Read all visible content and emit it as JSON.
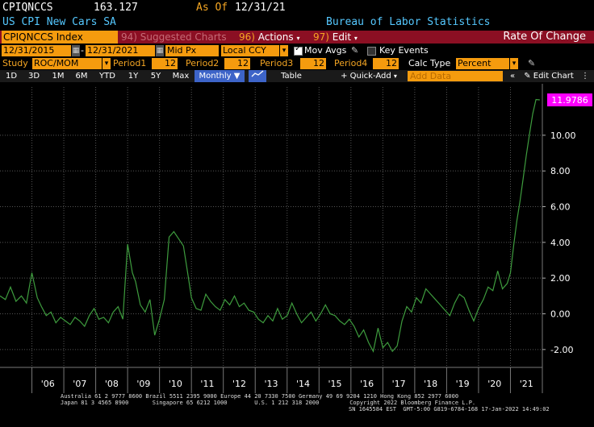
{
  "header": {
    "ticker": "CPIQNCCS",
    "price": "163.127",
    "as_of_label": "As Of",
    "as_of_date": "12/31/21",
    "description": "US CPI New Cars SA",
    "source": "Bureau of Labor Statistics"
  },
  "toolbar": {
    "security": "CPIQNCCS Index",
    "suggested_num": "94)",
    "suggested_label": "Suggested Charts",
    "actions_num": "96)",
    "actions_label": "Actions",
    "edit_num": "97)",
    "edit_label": "Edit",
    "right_title": "Rate Of Change"
  },
  "settings": {
    "start_date": "12/31/2015",
    "end_date": "12/31/2021",
    "price_field": "Mid Px",
    "currency": "Local CCY",
    "mov_avgs_label": "Mov Avgs",
    "key_events_label": "Key Events",
    "study_label": "Study",
    "study_value": "ROC/MOM",
    "period1_label": "Period1",
    "period1_value": "12",
    "period2_label": "Period2",
    "period2_value": "12",
    "period3_label": "Period3",
    "period3_value": "12",
    "period4_label": "Period4",
    "period4_value": "12",
    "calc_type_label": "Calc Type",
    "calc_type_value": "Percent"
  },
  "range_bar": {
    "ranges": [
      "1D",
      "3D",
      "1M",
      "6M",
      "YTD",
      "1Y",
      "5Y",
      "Max"
    ],
    "frequency": "Monthly",
    "table_label": "Table",
    "quick_add_label": "Quick-Add",
    "add_data_placeholder": "Add Data",
    "edit_chart_label": "Edit Chart"
  },
  "chart_data": {
    "type": "line",
    "title": "",
    "xlabel": "",
    "ylabel": "",
    "ylim": [
      -3.0,
      12.7
    ],
    "y_ticks": [
      -2.0,
      0.0,
      2.0,
      4.0,
      6.0,
      8.0,
      10.0
    ],
    "y_tick_labels": [
      "-2.00",
      "0.00",
      "2.00",
      "4.00",
      "6.00",
      "8.00",
      "10.00"
    ],
    "x_tick_labels": [
      "'06",
      "'07",
      "'08",
      "'09",
      "'10",
      "'11",
      "'12",
      "'13",
      "'14",
      "'15",
      "'16",
      "'17",
      "'18",
      "'19",
      "'20",
      "'21"
    ],
    "x_range": [
      2005.0,
      2022.0
    ],
    "last_value_label": "11.9786",
    "line_color": "#3e9c3e",
    "grid": true,
    "series": [
      {
        "x": [
          2005.0,
          2005.17,
          2005.33,
          2005.5,
          2005.67,
          2005.83,
          2006.0,
          2006.17,
          2006.3,
          2006.45,
          2006.6,
          2006.75,
          2006.9,
          2007.05,
          2007.2,
          2007.35,
          2007.5,
          2007.65,
          2007.8,
          2007.95,
          2008.1,
          2008.25,
          2008.4,
          2008.55,
          2008.7,
          2008.85,
          2009.0,
          2009.15,
          2009.25,
          2009.4,
          2009.55,
          2009.7,
          2009.85,
          2010.0,
          2010.15,
          2010.3,
          2010.45,
          2010.6,
          2010.75,
          2010.9,
          2011.0,
          2011.15,
          2011.3,
          2011.45,
          2011.6,
          2011.75,
          2011.9,
          2012.05,
          2012.2,
          2012.35,
          2012.5,
          2012.65,
          2012.8,
          2012.95,
          2013.1,
          2013.25,
          2013.4,
          2013.55,
          2013.7,
          2013.85,
          2014.0,
          2014.15,
          2014.3,
          2014.45,
          2014.6,
          2014.75,
          2014.9,
          2015.05,
          2015.2,
          2015.35,
          2015.5,
          2015.65,
          2015.8,
          2015.95,
          2016.1,
          2016.25,
          2016.4,
          2016.55,
          2016.7,
          2016.85,
          2017.0,
          2017.15,
          2017.3,
          2017.45,
          2017.6,
          2017.75,
          2017.9,
          2018.05,
          2018.2,
          2018.35,
          2018.5,
          2018.65,
          2018.8,
          2018.95,
          2019.1,
          2019.25,
          2019.4,
          2019.55,
          2019.7,
          2019.85,
          2020.0,
          2020.15,
          2020.3,
          2020.45,
          2020.6,
          2020.75,
          2020.9,
          2021.0,
          2021.1,
          2021.2,
          2021.3,
          2021.4,
          2021.5,
          2021.6,
          2021.7,
          2021.8,
          2021.92
        ],
        "y": [
          1.0,
          0.8,
          1.5,
          0.7,
          1.0,
          0.6,
          2.3,
          0.9,
          0.4,
          -0.1,
          0.1,
          -0.5,
          -0.2,
          -0.4,
          -0.6,
          -0.2,
          -0.4,
          -0.7,
          -0.1,
          0.3,
          -0.3,
          -0.2,
          -0.5,
          0.1,
          0.4,
          -0.3,
          3.9,
          2.3,
          1.8,
          0.5,
          0.1,
          0.8,
          -1.2,
          -0.3,
          0.8,
          4.3,
          4.6,
          4.2,
          3.8,
          2.1,
          0.9,
          0.3,
          0.2,
          1.1,
          0.7,
          0.4,
          0.2,
          0.8,
          0.5,
          1.0,
          0.4,
          0.6,
          0.2,
          0.1,
          -0.3,
          -0.5,
          -0.1,
          -0.4,
          0.3,
          -0.3,
          -0.1,
          0.6,
          0.0,
          -0.5,
          -0.2,
          0.1,
          -0.4,
          0.0,
          0.5,
          0.0,
          -0.1,
          -0.4,
          -0.6,
          -0.3,
          -0.7,
          -1.3,
          -0.9,
          -1.6,
          -2.1,
          -0.8,
          -1.9,
          -1.6,
          -2.1,
          -1.8,
          -0.4,
          0.4,
          0.1,
          0.9,
          0.6,
          1.4,
          1.1,
          0.8,
          0.5,
          0.2,
          -0.1,
          0.6,
          1.1,
          0.9,
          0.2,
          -0.4,
          0.3,
          0.8,
          1.5,
          1.3,
          2.4,
          1.4,
          1.7,
          2.3,
          3.8,
          5.2,
          6.3,
          7.6,
          8.9,
          10.1,
          11.2,
          12.0,
          11.9786
        ]
      }
    ]
  },
  "footer": {
    "line1": "Australia 61 2 9777 8600 Brazil 5511 2395 9000 Europe 44 20 7330 7500 Germany 49 69 9204 1210 Hong Kong 852 2977 6000",
    "line2": "Japan 81 3 4565 8900       Singapore 65 6212 1000        U.S. 1 212 318 2000         Copyright 2022 Bloomberg Finance L.P.",
    "line3": "SN 1645584 EST  GMT-5:00 G819-6784-168 17-Jan-2022 14:49:02"
  }
}
